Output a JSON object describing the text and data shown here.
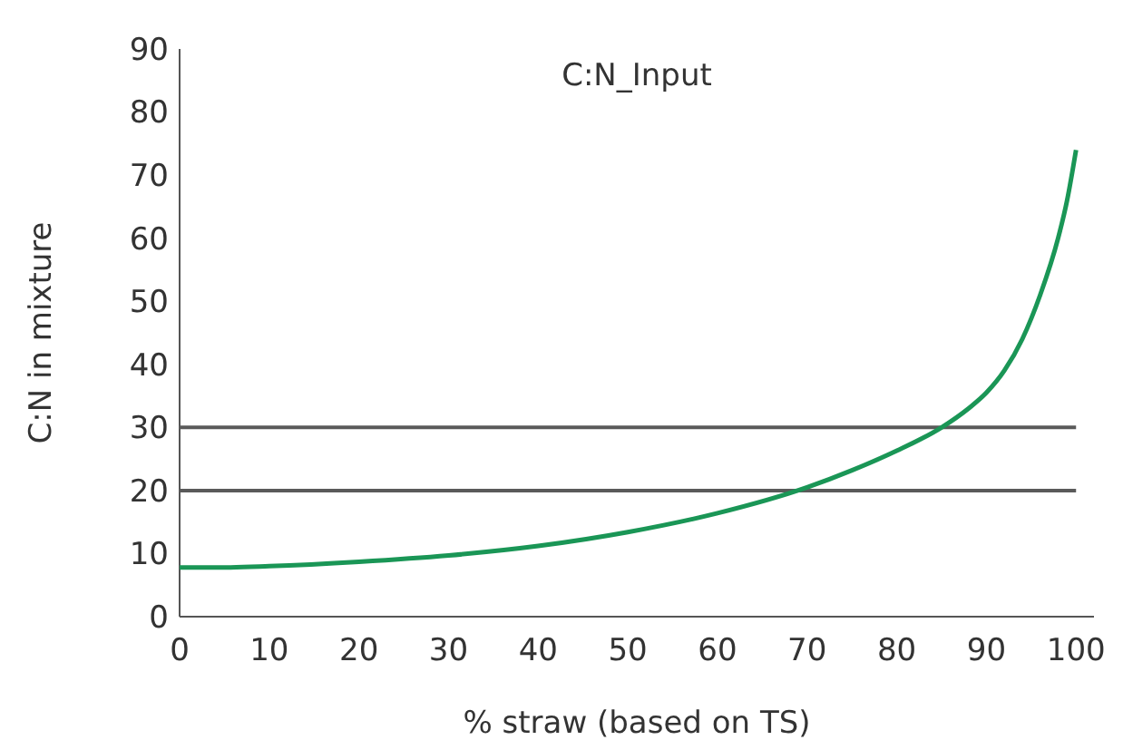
{
  "chart_data": {
    "type": "line",
    "title": "C:N_Input",
    "xlabel": "% straw (based on TS)",
    "ylabel": "C:N in mixture",
    "xlim": [
      0,
      102
    ],
    "xticks": [
      0,
      10,
      20,
      30,
      40,
      50,
      60,
      70,
      80,
      90,
      100
    ],
    "ylim": [
      0,
      90
    ],
    "yticks": [
      0,
      10,
      20,
      30,
      40,
      50,
      60,
      70,
      80,
      90
    ],
    "grid": false,
    "marker": "none",
    "line_style": "solid",
    "series": [
      {
        "color": "#1a9656",
        "x": [
          0,
          5,
          10,
          20,
          30,
          40,
          50,
          60,
          70,
          75,
          80,
          85,
          88,
          90,
          92,
          94,
          96,
          98,
          99,
          100
        ],
        "values": [
          7.8,
          7.8,
          8.0,
          8.7,
          9.7,
          11.2,
          13.4,
          16.4,
          20.5,
          23.2,
          26.3,
          30,
          33,
          35.5,
          39,
          44,
          51,
          60,
          66,
          74
        ]
      }
    ],
    "ref_lines": [
      {
        "axis": "y",
        "value": 30,
        "color": "#5a5a5a"
      },
      {
        "axis": "y",
        "value": 20,
        "color": "#5a5a5a"
      }
    ]
  }
}
